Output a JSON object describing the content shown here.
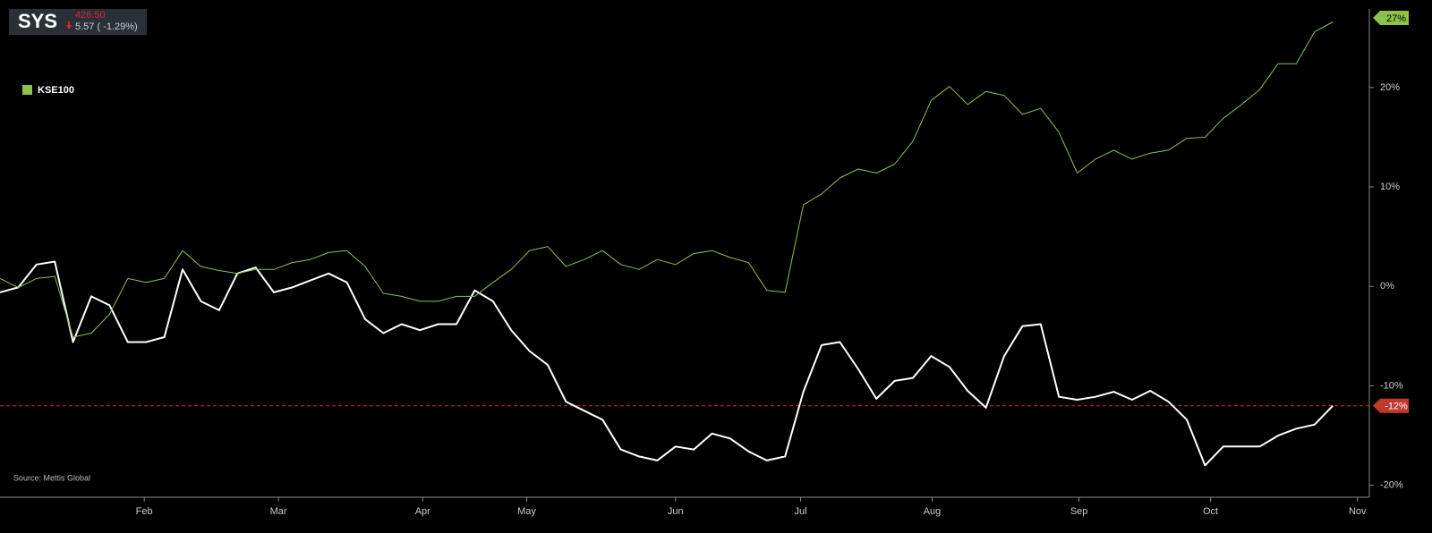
{
  "chart_data": {
    "type": "line",
    "ticker": {
      "symbol": "SYS",
      "price": "426.50",
      "change": "5.57 ( -1.29%)"
    },
    "source": "Source: Mettis Global",
    "xlim": [
      0,
      75
    ],
    "xticks": [
      {
        "value": 7.9,
        "label": "Feb"
      },
      {
        "value": 15.25,
        "label": "Mar"
      },
      {
        "value": 23.15,
        "label": "Apr"
      },
      {
        "value": 28.85,
        "label": "May"
      },
      {
        "value": 37,
        "label": "Jun"
      },
      {
        "value": 43.85,
        "label": "Jul"
      },
      {
        "value": 51.05,
        "label": "Aug"
      },
      {
        "value": 59.1,
        "label": "Sep"
      },
      {
        "value": 66.3,
        "label": "Oct"
      },
      {
        "value": 74.35,
        "label": "Nov"
      }
    ],
    "ylim": [
      -21.2,
      27.9
    ],
    "yticks": [
      {
        "value": -20,
        "label": "-20%"
      },
      {
        "value": -10,
        "label": "-10%"
      },
      {
        "value": 0,
        "label": "0%"
      },
      {
        "value": 10,
        "label": "10%"
      },
      {
        "value": 20,
        "label": "20%"
      }
    ],
    "series": [
      {
        "name": "SYS",
        "color": "#ffffff",
        "end_value": -12,
        "end_label": "-12%",
        "end_color": "#c0392b",
        "values": [
          -0.6,
          -0.1,
          2.2,
          2.5,
          -5.6,
          -1.0,
          -1.9,
          -5.6,
          -5.6,
          -5.1,
          1.7,
          -1.5,
          -2.4,
          1.3,
          1.9,
          -0.6,
          -0.1,
          0.6,
          1.3,
          0.4,
          -3.3,
          -4.7,
          -3.8,
          -4.4,
          -3.8,
          -3.8,
          -0.4,
          -1.5,
          -4.4,
          -6.5,
          -7.9,
          -11.6,
          -12.5,
          -13.4,
          -16.4,
          -17.1,
          -17.5,
          -16.1,
          -16.4,
          -14.8,
          -15.3,
          -16.6,
          -17.5,
          -17.1,
          -10.6,
          -5.9,
          -5.6,
          -8.3,
          -11.3,
          -9.5,
          -9.2,
          -7.0,
          -8.1,
          -10.5,
          -12.2,
          -7.0,
          -4.0,
          -3.8,
          -11.1,
          -11.4,
          -11.1,
          -10.6,
          -11.4,
          -10.5,
          -11.6,
          -13.4,
          -18.0,
          -16.1,
          -16.1,
          -16.1,
          -15.0,
          -14.3,
          -13.9,
          -12.0
        ]
      },
      {
        "name": "KSE100",
        "color": "#8bc34a",
        "end_value": 27,
        "end_label": "27%",
        "end_color": "#8bc34a",
        "values": [
          0.8,
          -0.1,
          0.8,
          1.0,
          -5.1,
          -4.7,
          -2.8,
          0.8,
          0.4,
          0.8,
          3.6,
          2.0,
          1.6,
          1.3,
          1.7,
          1.7,
          2.4,
          2.7,
          3.4,
          3.6,
          2.0,
          -0.7,
          -1.0,
          -1.5,
          -1.5,
          -1.0,
          -1.0,
          0.4,
          1.7,
          3.6,
          4.0,
          2.0,
          2.7,
          3.6,
          2.2,
          1.7,
          2.7,
          2.2,
          3.3,
          3.6,
          2.9,
          2.4,
          -0.4,
          -0.6,
          8.2,
          9.3,
          10.9,
          11.8,
          11.4,
          12.3,
          14.6,
          18.7,
          20.1,
          18.3,
          19.6,
          19.2,
          17.3,
          17.9,
          15.5,
          11.4,
          12.8,
          13.7,
          12.8,
          13.4,
          13.7,
          14.9,
          15.0,
          16.9,
          18.3,
          19.8,
          22.4,
          22.4,
          25.6,
          26.6
        ]
      }
    ]
  }
}
